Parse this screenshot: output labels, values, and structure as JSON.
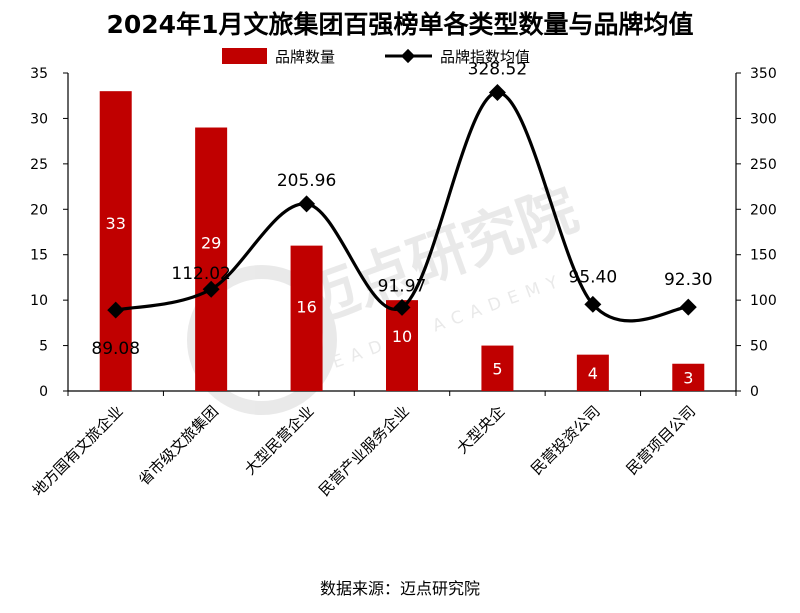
{
  "chart_data": {
    "type": "bar",
    "title": "2024年1月文旅集团百强榜单各类型数量与品牌均值",
    "categories": [
      "地方国有文旅企业",
      "省市级文旅集团",
      "大型民营企业",
      "民营产业服务企业",
      "大型央企",
      "民营投资公司",
      "民营项目公司"
    ],
    "series": [
      {
        "name": "品牌数量",
        "chart": "bar",
        "axis": "left",
        "color": "#c00000",
        "values": [
          33,
          29,
          16,
          10,
          5,
          4,
          3
        ],
        "labels": [
          "33",
          "29",
          "16",
          "10",
          "5",
          "4",
          "3"
        ]
      },
      {
        "name": "品牌指数均值",
        "chart": "line",
        "axis": "right",
        "color": "#000000",
        "values": [
          89.08,
          112.02,
          205.96,
          91.97,
          328.52,
          95.4,
          92.3
        ],
        "labels": [
          "89.08",
          "112.02",
          "205.96",
          "91.97",
          "328.52",
          "95.40",
          "92.30"
        ]
      }
    ],
    "y_left": {
      "min": 0,
      "max": 35,
      "ticks": [
        "0",
        "5",
        "10",
        "15",
        "20",
        "25",
        "30",
        "35"
      ]
    },
    "y_right": {
      "min": 0,
      "max": 350,
      "ticks": [
        "0",
        "50",
        "100",
        "150",
        "200",
        "250",
        "300",
        "350"
      ]
    },
    "grid": false,
    "legend_position": "top",
    "smooth_line": true
  },
  "source_note": "数据来源：迈点研究院",
  "watermark": {
    "text": "迈点研究院",
    "subtext": "MEADIN ACADEMY"
  }
}
